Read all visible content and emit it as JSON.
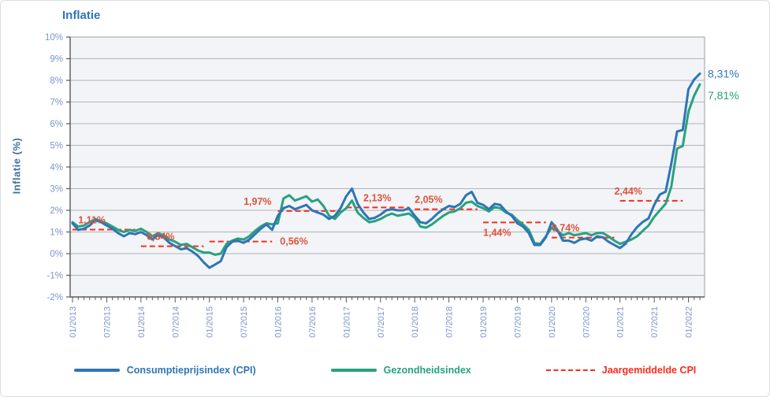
{
  "header": {
    "title": "Inflatie"
  },
  "colors": {
    "cpi": "#2e75b6",
    "health": "#28a17e",
    "average_dash": "#fb2c1d",
    "average_label": "#e0523c",
    "axis_text": "#7b96ca",
    "title": "#2e75b6",
    "y_title": "#41719c",
    "grid": "#b0b4b9",
    "plot_bg": "#f2f4f7",
    "axis_line": "#595959",
    "border": "#9aa0a6"
  },
  "y_axis": {
    "title": "Inflatie (%)",
    "tick_labels": [
      "10%",
      "9%",
      "8%",
      "7%",
      "6%",
      "5%",
      "4%",
      "3%",
      "2%",
      "1%",
      "0%",
      "-1%",
      "-2%"
    ],
    "max": 10,
    "min": -2
  },
  "x_axis": {
    "tick_labels": [
      "01/2013",
      "07/2013",
      "01/2014",
      "07/2014",
      "01/2015",
      "07/2015",
      "01/2016",
      "07/2016",
      "01/2017",
      "07/2017",
      "01/2018",
      "07/2018",
      "01/2019",
      "07/2019",
      "01/2020",
      "07/2020",
      "01/2021",
      "07/2021",
      "01/2022"
    ]
  },
  "legend": [
    {
      "label": "Consumptieprijsindex (CPI)",
      "color_key": "cpi",
      "style": "solid"
    },
    {
      "label": "Gezondheidsindex",
      "color_key": "health",
      "style": "solid"
    },
    {
      "label": "Jaargemiddelde CPI",
      "color_key": "average_dash",
      "style": "dashed"
    }
  ],
  "end_labels": [
    {
      "text": "8,31%",
      "value": 8.31,
      "color_key": "cpi",
      "dy": 5
    },
    {
      "text": "7,81%",
      "value": 7.81,
      "color_key": "health",
      "dy": 19
    }
  ],
  "chart_data": {
    "type": "line",
    "title": "Inflatie",
    "xlabel": "",
    "ylabel": "Inflatie (%)",
    "ylim": [
      -2,
      10
    ],
    "grid": true,
    "legend_position": "bottom",
    "x_start": "01/2013",
    "x_end": "03/2022",
    "n_points": 111,
    "series": [
      {
        "name": "Consumptieprijsindex (CPI)",
        "color_key": "cpi",
        "values": [
          1.4,
          1.1,
          1.15,
          1.3,
          1.55,
          1.45,
          1.3,
          1.15,
          0.95,
          0.8,
          0.95,
          0.9,
          1.0,
          0.85,
          0.65,
          0.85,
          0.75,
          0.5,
          0.35,
          0.2,
          0.25,
          0.1,
          -0.1,
          -0.4,
          -0.65,
          -0.5,
          -0.35,
          0.3,
          0.55,
          0.6,
          0.5,
          0.65,
          0.9,
          1.15,
          1.35,
          1.1,
          1.75,
          2.1,
          2.2,
          2.05,
          2.15,
          2.25,
          2.0,
          1.9,
          1.8,
          1.6,
          1.75,
          2.1,
          2.65,
          3.0,
          2.3,
          1.9,
          1.6,
          1.65,
          1.8,
          2.0,
          2.05,
          2.0,
          2.0,
          2.1,
          1.75,
          1.45,
          1.4,
          1.6,
          1.85,
          2.05,
          2.2,
          2.15,
          2.3,
          2.7,
          2.85,
          2.35,
          2.25,
          2.05,
          2.3,
          2.25,
          1.95,
          1.75,
          1.4,
          1.25,
          0.95,
          0.4,
          0.4,
          0.75,
          1.45,
          1.1,
          0.6,
          0.6,
          0.5,
          0.65,
          0.7,
          0.6,
          0.8,
          0.75,
          0.55,
          0.4,
          0.26,
          0.46,
          0.89,
          1.23,
          1.46,
          1.63,
          2.25,
          2.73,
          2.86,
          4.16,
          5.64,
          5.71,
          7.59,
          8.04,
          8.31
        ]
      },
      {
        "name": "Gezondheidsindex",
        "color_key": "health",
        "values": [
          1.45,
          1.25,
          1.3,
          1.45,
          1.6,
          1.5,
          1.4,
          1.25,
          1.1,
          1.0,
          1.1,
          1.05,
          1.15,
          1.0,
          0.8,
          0.95,
          0.85,
          0.65,
          0.55,
          0.4,
          0.45,
          0.3,
          0.15,
          0.05,
          0.05,
          -0.05,
          0.0,
          0.45,
          0.6,
          0.7,
          0.65,
          0.8,
          1.05,
          1.25,
          1.4,
          1.35,
          1.4,
          2.55,
          2.7,
          2.45,
          2.55,
          2.65,
          2.4,
          2.5,
          2.2,
          1.75,
          1.6,
          1.9,
          2.1,
          2.45,
          1.9,
          1.65,
          1.45,
          1.5,
          1.6,
          1.75,
          1.85,
          1.75,
          1.8,
          1.85,
          1.65,
          1.25,
          1.2,
          1.35,
          1.55,
          1.75,
          1.9,
          1.95,
          2.1,
          2.35,
          2.4,
          2.2,
          2.1,
          1.95,
          2.15,
          2.1,
          1.9,
          1.8,
          1.55,
          1.35,
          1.1,
          0.5,
          0.45,
          0.8,
          1.2,
          1.05,
          0.85,
          0.95,
          0.85,
          0.9,
          0.95,
          0.85,
          0.95,
          0.95,
          0.8,
          0.6,
          0.45,
          0.55,
          0.65,
          0.8,
          1.05,
          1.3,
          1.7,
          2.0,
          2.3,
          3.1,
          4.85,
          4.97,
          6.55,
          7.3,
          7.81
        ]
      }
    ],
    "annual_average_cpi": [
      {
        "year": 2013,
        "value": 1.11,
        "label": "1,11%",
        "label_pos": "above",
        "label_month": 1
      },
      {
        "year": 2014,
        "value": 0.34,
        "label": "0,34%",
        "label_pos": "above",
        "label_month": 13
      },
      {
        "year": 2015,
        "value": 0.56,
        "label": "0,56%",
        "label_pos": "right",
        "label_month": 35
      },
      {
        "year": 2016,
        "value": 1.97,
        "label": "1,97%",
        "label_pos": "above",
        "label_month": 30
      },
      {
        "year": 2017,
        "value": 2.13,
        "label": "2,13%",
        "label_pos": "above",
        "label_month": 51
      },
      {
        "year": 2018,
        "value": 2.05,
        "label": "2,05%",
        "label_pos": "above",
        "label_month": 60
      },
      {
        "year": 2019,
        "value": 1.44,
        "label": "1,44%",
        "label_pos": "below",
        "label_month": 72
      },
      {
        "year": 2020,
        "value": 0.74,
        "label": "0,74%",
        "label_pos": "above",
        "label_month": 84
      },
      {
        "year": 2021,
        "value": 2.44,
        "label": "2,44%",
        "label_pos": "above",
        "label_month": 95
      }
    ]
  }
}
